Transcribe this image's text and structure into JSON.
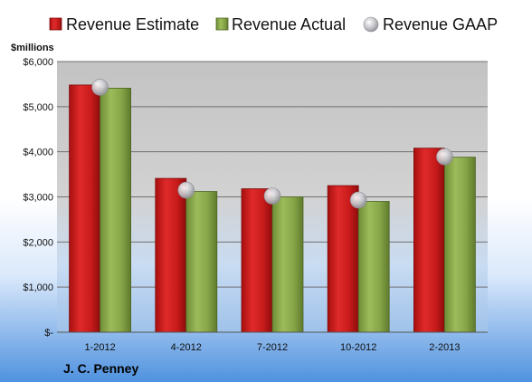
{
  "chart_data": {
    "type": "bar",
    "categories": [
      "1-2012",
      "4-2012",
      "7-2012",
      "10-2012",
      "2-2013"
    ],
    "series": [
      {
        "name": "Revenue Estimate",
        "type": "bar",
        "color": "#cc1f1f",
        "values": [
          5480,
          3410,
          3180,
          3250,
          4080
        ]
      },
      {
        "name": "Revenue Actual",
        "type": "bar",
        "color": "#8aaa4a",
        "values": [
          5410,
          3120,
          3000,
          2900,
          3880
        ]
      },
      {
        "name": "Revenue GAAP",
        "type": "marker",
        "color": "#c9c9cf",
        "values": [
          5430,
          3150,
          3020,
          2930,
          3890
        ]
      }
    ],
    "ylim": [
      0,
      6000
    ],
    "yticks": [
      0,
      1000,
      2000,
      3000,
      4000,
      5000,
      6000
    ],
    "ytick_labels": [
      "$-",
      "$1,000",
      "$2,000",
      "$3,000",
      "$4,000",
      "$5,000",
      "$6,000"
    ],
    "ylabel": "$millions",
    "xlabel": "",
    "grid": true,
    "legend_position": "top"
  },
  "footer": {
    "company": "J. C. Penney"
  }
}
